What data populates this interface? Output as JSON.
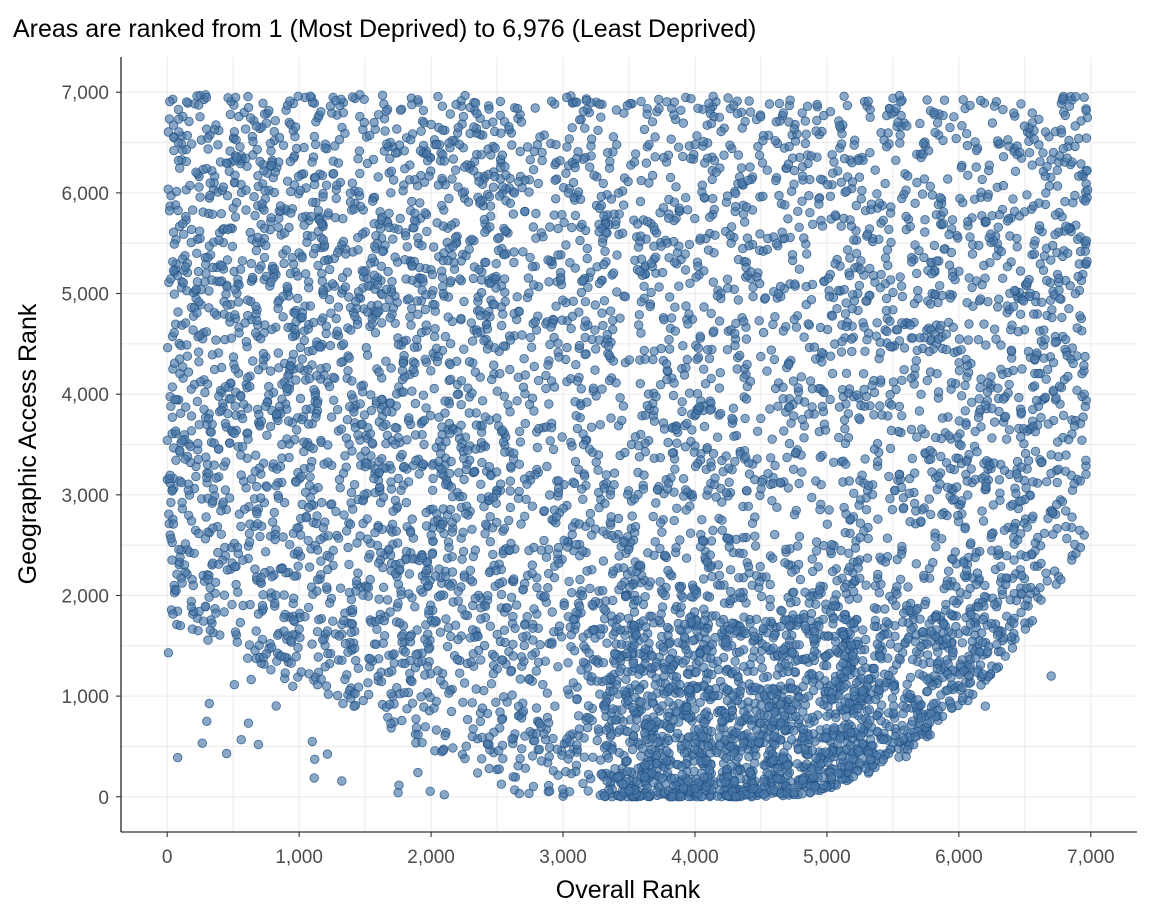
{
  "chart_data": {
    "type": "scatter",
    "title": "Areas are ranked from 1 (Most Deprived) to 6,976 (Least Deprived)",
    "xlabel": "Overall Rank",
    "ylabel": "Geographic Access Rank",
    "xlim": [
      -350,
      7350
    ],
    "ylim": [
      -350,
      7350
    ],
    "xticks": [
      0,
      1000,
      2000,
      3000,
      4000,
      5000,
      6000,
      7000
    ],
    "yticks": [
      0,
      1000,
      2000,
      3000,
      4000,
      5000,
      6000,
      7000
    ],
    "xtick_labels": [
      "0",
      "1,000",
      "2,000",
      "3,000",
      "4,000",
      "5,000",
      "6,000",
      "7,000"
    ],
    "ytick_labels": [
      "0",
      "1,000",
      "2,000",
      "3,000",
      "4,000",
      "5,000",
      "6,000",
      "7,000"
    ],
    "n_points": 6976,
    "grid": true,
    "point_color": "#4a78a8",
    "point_outline_color": "#1e4e80",
    "sample_points": [
      [
        1750,
        40
      ],
      [
        1900,
        240
      ],
      [
        2100,
        20
      ],
      [
        450,
        430
      ],
      [
        1100,
        550
      ],
      [
        3050,
        50
      ],
      [
        3500,
        60
      ],
      [
        4000,
        80
      ],
      [
        4300,
        150
      ],
      [
        4750,
        40
      ],
      [
        5200,
        200
      ],
      [
        5600,
        400
      ],
      [
        6200,
        900
      ],
      [
        6700,
        1200
      ],
      [
        6950,
        2600
      ],
      [
        6950,
        4000
      ],
      [
        6950,
        6950
      ],
      [
        50,
        6550
      ],
      [
        100,
        1700
      ],
      [
        300,
        750
      ],
      [
        3900,
        300
      ],
      [
        4100,
        500
      ],
      [
        4600,
        600
      ],
      [
        5000,
        800
      ],
      [
        5500,
        1100
      ]
    ]
  }
}
